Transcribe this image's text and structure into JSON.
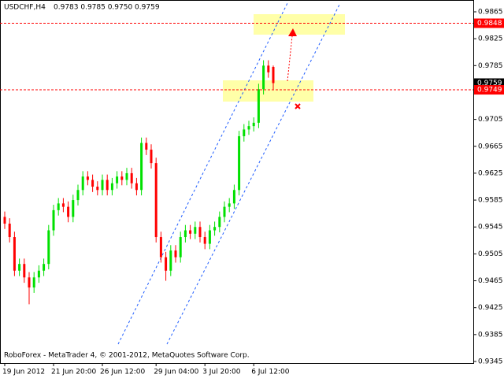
{
  "chart_data": {
    "type": "candlestick",
    "title": "USDCHF,H4",
    "subtitle": "0.9783 0.9785 0.9750 0.9759",
    "footer": "RoboForex - MetaTrader 4, © 2001-2012, MetaQuotes Software Corp.",
    "categories": [
      "19 Jun 2012",
      null,
      null,
      null,
      null,
      null,
      null,
      null,
      null,
      null,
      "21 Jun 20:00",
      null,
      null,
      null,
      null,
      null,
      null,
      null,
      null,
      null,
      "26 Jun 12:00",
      null,
      null,
      null,
      null,
      null,
      null,
      null,
      null,
      null,
      null,
      "29 Jun 04:00",
      null,
      null,
      null,
      null,
      null,
      null,
      null,
      null,
      null,
      "3 Jul 20:00",
      null,
      null,
      null,
      null,
      null,
      null,
      null,
      null,
      null,
      "6 Jul 12:00",
      null,
      null,
      null,
      null
    ],
    "open": [
      0.956,
      0.955,
      0.953,
      0.948,
      0.949,
      0.947,
      0.9455,
      0.947,
      0.948,
      0.949,
      0.954,
      0.957,
      0.958,
      0.9575,
      0.956,
      0.9585,
      0.96,
      0.962,
      0.9615,
      0.9605,
      0.96,
      0.9615,
      0.96,
      0.961,
      0.962,
      0.9615,
      0.9625,
      0.961,
      0.96,
      0.967,
      0.966,
      0.964,
      0.953,
      0.95,
      0.948,
      0.951,
      0.95,
      0.953,
      0.954,
      0.9535,
      0.9545,
      0.953,
      0.952,
      0.954,
      0.9545,
      0.956,
      0.9575,
      0.958,
      0.96,
      0.968,
      0.969,
      0.9695,
      0.97,
      0.975,
      0.9785,
      0.9783
    ],
    "high": [
      0.9568,
      0.9558,
      0.9538,
      0.9498,
      0.9498,
      0.9478,
      0.9478,
      0.9488,
      0.9498,
      0.9548,
      0.9578,
      0.9588,
      0.9588,
      0.9583,
      0.9593,
      0.9608,
      0.9628,
      0.9628,
      0.9623,
      0.9613,
      0.9623,
      0.9623,
      0.9618,
      0.9628,
      0.9628,
      0.9633,
      0.9633,
      0.9618,
      0.9678,
      0.9678,
      0.9668,
      0.9648,
      0.9538,
      0.9508,
      0.9518,
      0.9518,
      0.9538,
      0.9548,
      0.9548,
      0.9553,
      0.9553,
      0.9538,
      0.9548,
      0.9553,
      0.9568,
      0.9583,
      0.9588,
      0.9608,
      0.9688,
      0.9698,
      0.9703,
      0.9708,
      0.9758,
      0.9793,
      0.9793,
      0.9785
    ],
    "low": [
      0.9542,
      0.9522,
      0.9472,
      0.9472,
      0.9462,
      0.943,
      0.9447,
      0.9462,
      0.9472,
      0.9482,
      0.9532,
      0.9562,
      0.9567,
      0.9552,
      0.9552,
      0.9577,
      0.9592,
      0.9607,
      0.9597,
      0.9592,
      0.9592,
      0.9592,
      0.9592,
      0.9602,
      0.9607,
      0.9607,
      0.9602,
      0.9592,
      0.9592,
      0.9652,
      0.9632,
      0.9522,
      0.9492,
      0.9465,
      0.9472,
      0.9492,
      0.9492,
      0.9522,
      0.9527,
      0.9527,
      0.9522,
      0.9512,
      0.9512,
      0.9532,
      0.9537,
      0.9552,
      0.9567,
      0.9572,
      0.9592,
      0.9672,
      0.9682,
      0.9687,
      0.9692,
      0.9742,
      0.9767,
      0.975
    ],
    "close": [
      0.955,
      0.953,
      0.948,
      0.949,
      0.947,
      0.9455,
      0.947,
      0.948,
      0.949,
      0.954,
      0.957,
      0.958,
      0.9575,
      0.956,
      0.9585,
      0.96,
      0.962,
      0.9615,
      0.9605,
      0.96,
      0.9615,
      0.96,
      0.961,
      0.962,
      0.9615,
      0.9625,
      0.961,
      0.96,
      0.967,
      0.966,
      0.964,
      0.953,
      0.95,
      0.948,
      0.951,
      0.95,
      0.953,
      0.954,
      0.9535,
      0.9545,
      0.953,
      0.952,
      0.954,
      0.9545,
      0.956,
      0.9575,
      0.958,
      0.96,
      0.968,
      0.969,
      0.9695,
      0.97,
      0.975,
      0.9785,
      0.9775,
      0.9759
    ],
    "up_color": "#00e000",
    "down_color": "#ff0000",
    "ylim": [
      0.9345,
      0.9865
    ],
    "yticks": [
      0.9865,
      0.9825,
      0.9785,
      0.9705,
      0.9665,
      0.9625,
      0.9585,
      0.9545,
      0.9505,
      0.9465,
      0.9425,
      0.9385,
      0.9345
    ],
    "price_levels": [
      {
        "value": 0.9848,
        "color": "#ff0000",
        "line": true
      },
      {
        "value": 0.9759,
        "color": "#000000",
        "line": false
      },
      {
        "value": 0.9749,
        "color": "#ff0000",
        "line": true
      }
    ]
  }
}
